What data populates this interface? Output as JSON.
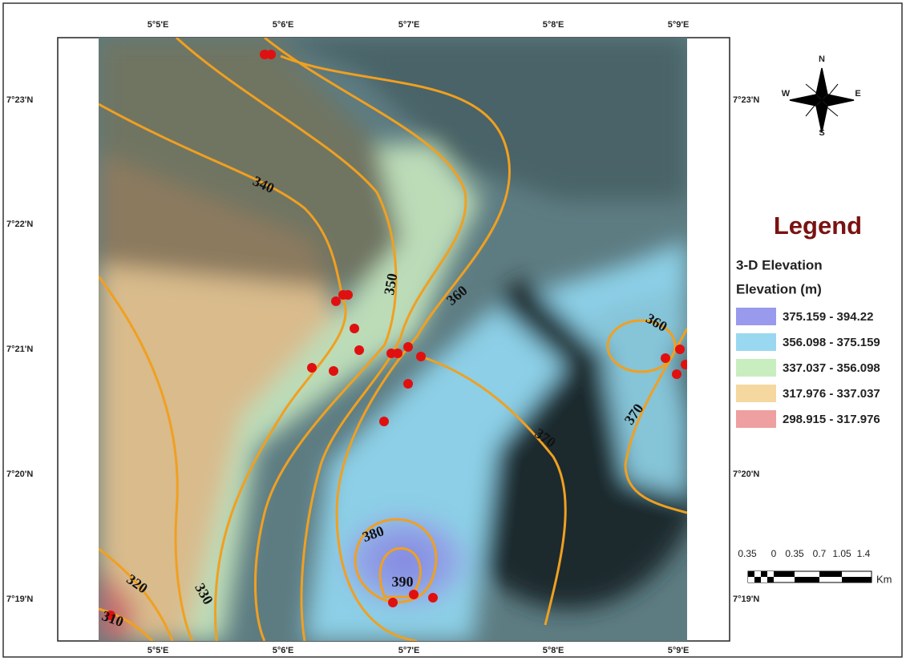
{
  "grid_labels": {
    "top": [
      "5°5'E",
      "5°6'E",
      "5°7'E",
      "5°8'E",
      "5°9'E"
    ],
    "bottom": [
      "5°5'E",
      "5°6'E",
      "5°7'E",
      "5°8'E",
      "5°9'E"
    ],
    "left": [
      "7°23'N",
      "7°22'N",
      "7°21'N",
      "7°20'N",
      "7°19'N"
    ],
    "right": [
      "7°23'N",
      "7°20'N",
      "7°19'N"
    ]
  },
  "contour_labels": [
    "340",
    "350",
    "360",
    "360",
    "370",
    "370",
    "380",
    "390",
    "320",
    "330",
    "310"
  ],
  "legend": {
    "title": "Legend",
    "layer": "3-D Elevation",
    "field": "Elevation (m)",
    "items": [
      {
        "label": "375.159 - 394.22",
        "color": "#9999ee"
      },
      {
        "label": "356.098 - 375.159",
        "color": "#99d8f0"
      },
      {
        "label": "337.037 - 356.098",
        "color": "#c8eec0"
      },
      {
        "label": "317.976 - 337.037",
        "color": "#f5d7a0"
      },
      {
        "label": "298.915 - 317.976",
        "color": "#ee9f9f"
      }
    ]
  },
  "scale_bar": {
    "labels": [
      "0.35",
      "0",
      "0.35",
      "0.7",
      "1.05",
      "1.4"
    ],
    "unit": "Km"
  },
  "north_arrow": {
    "n": "N",
    "s": "S",
    "e": "E",
    "w": "W"
  }
}
